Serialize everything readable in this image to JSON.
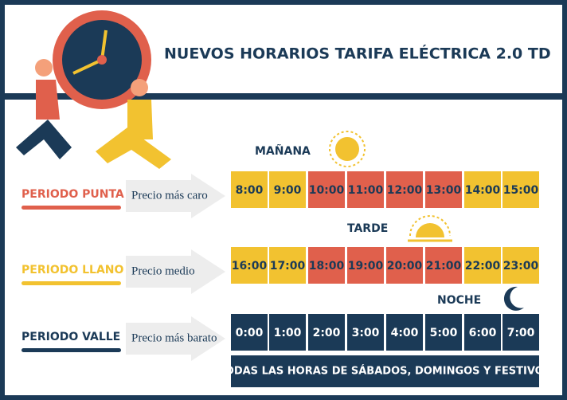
{
  "header": {
    "title": "NUEVOS HORARIOS TARIFA ELÉCTRICA 2.0 TD"
  },
  "periods": [
    {
      "name": "PERIODO PUNTA",
      "note": "Precio más caro",
      "color": "#e0604c"
    },
    {
      "name": "PERIODO LLANO",
      "note": "Precio medio",
      "color": "#f2c230"
    },
    {
      "name": "PERIODO VALLE",
      "note": "Precio más barato",
      "color": "#1b3a57"
    }
  ],
  "sections": [
    {
      "label": "MAÑANA",
      "hours": [
        {
          "text": "8:00",
          "color": "#f2c230"
        },
        {
          "text": "9:00",
          "color": "#f2c230"
        },
        {
          "text": "10:00",
          "color": "#e0604c"
        },
        {
          "text": "11:00",
          "color": "#e0604c"
        },
        {
          "text": "12:00",
          "color": "#e0604c"
        },
        {
          "text": "13:00",
          "color": "#e0604c"
        },
        {
          "text": "14:00",
          "color": "#f2c230"
        },
        {
          "text": "15:00",
          "color": "#f2c230"
        }
      ]
    },
    {
      "label": "TARDE",
      "hours": [
        {
          "text": "16:00",
          "color": "#f2c230"
        },
        {
          "text": "17:00",
          "color": "#f2c230"
        },
        {
          "text": "18:00",
          "color": "#e0604c"
        },
        {
          "text": "19:00",
          "color": "#e0604c"
        },
        {
          "text": "20:00",
          "color": "#e0604c"
        },
        {
          "text": "21:00",
          "color": "#e0604c"
        },
        {
          "text": "22:00",
          "color": "#f2c230"
        },
        {
          "text": "23:00",
          "color": "#f2c230"
        }
      ]
    },
    {
      "label": "NOCHE",
      "hours": [
        {
          "text": "0:00",
          "color": "#1b3a57"
        },
        {
          "text": "1:00",
          "color": "#1b3a57"
        },
        {
          "text": "2:00",
          "color": "#1b3a57"
        },
        {
          "text": "3:00",
          "color": "#1b3a57"
        },
        {
          "text": "4:00",
          "color": "#1b3a57"
        },
        {
          "text": "5:00",
          "color": "#1b3a57"
        },
        {
          "text": "6:00",
          "color": "#1b3a57"
        },
        {
          "text": "7:00",
          "color": "#1b3a57"
        }
      ]
    }
  ],
  "footer": "TODAS LAS HORAS DE SÁBADOS, DOMINGOS Y FESTIVOS"
}
